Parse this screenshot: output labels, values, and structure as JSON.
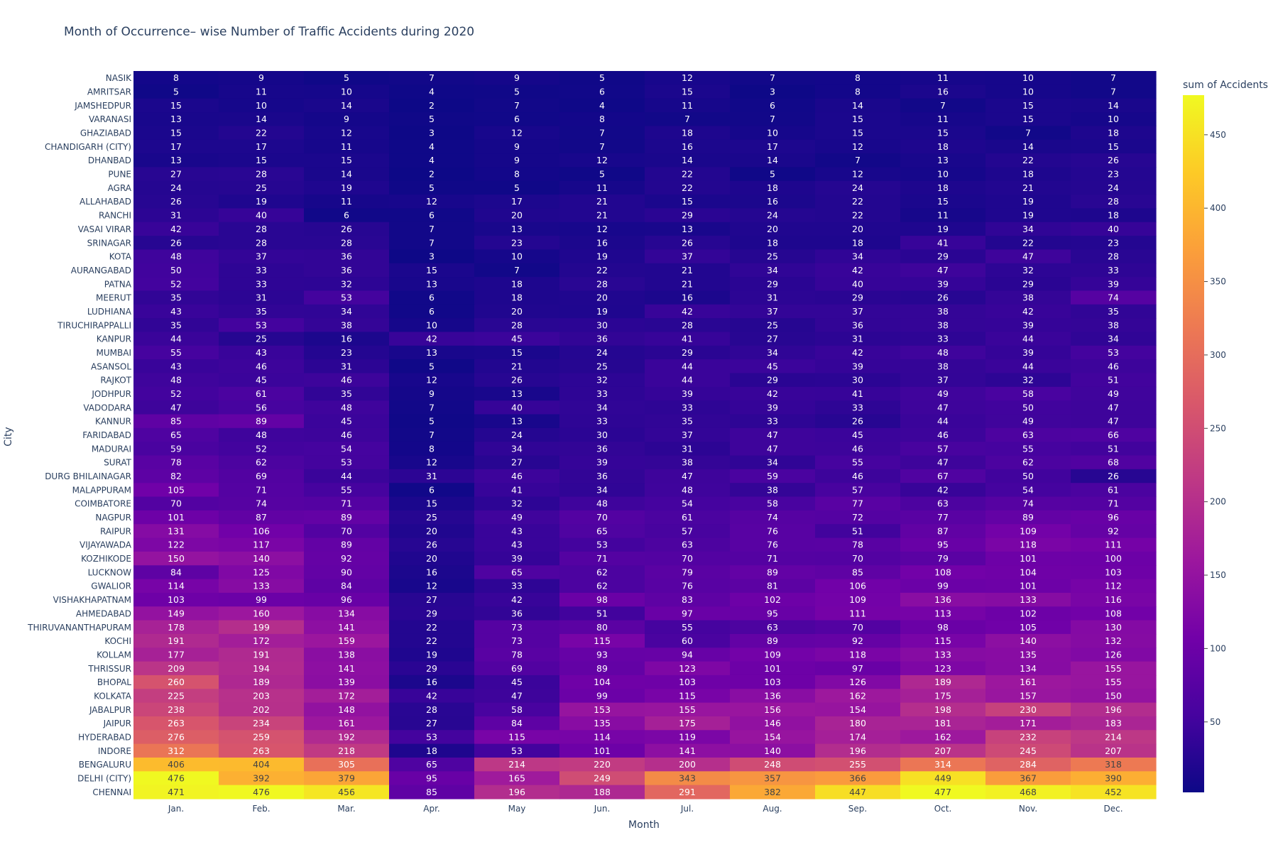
{
  "chart_data": {
    "type": "heatmap",
    "title": "Month of Occurrence– wise Number of Traffic Accidents during 2020",
    "xlabel": "Month",
    "ylabel": "City",
    "colorbar_title": "sum of Accidents",
    "colorbar_ticks": [
      50,
      100,
      150,
      200,
      250,
      300,
      350,
      400,
      450
    ],
    "zrange": [
      2,
      477
    ],
    "colorscale": [
      "#0d0887",
      "#46039f",
      "#7201a8",
      "#9c179e",
      "#bd3786",
      "#d8576b",
      "#ed7953",
      "#fb9f3a",
      "#fdca26",
      "#f0f921"
    ],
    "months": [
      "Jan.",
      "Feb.",
      "Mar.",
      "Apr.",
      "May",
      "Jun.",
      "Jul.",
      "Aug.",
      "Sep.",
      "Oct.",
      "Nov.",
      "Dec."
    ],
    "cities": [
      "NASIK",
      "AMRITSAR",
      "JAMSHEDPUR",
      "VARANASI",
      "GHAZIABAD",
      "CHANDIGARH (CITY)",
      "DHANBAD",
      "PUNE",
      "AGRA",
      "ALLAHABAD",
      "RANCHI",
      "VASAI VIRAR",
      "SRINAGAR",
      "KOTA",
      "AURANGABAD",
      "PATNA",
      "MEERUT",
      "LUDHIANA",
      "TIRUCHIRAPPALLI",
      "KANPUR",
      "MUMBAI",
      "ASANSOL",
      "RAJKOT",
      "JODHPUR",
      "VADODARA",
      "KANNUR",
      "FARIDABAD",
      "MADURAI",
      "SURAT",
      "DURG BHILAINAGAR",
      "MALAPPURAM",
      "COIMBATORE",
      "NAGPUR",
      "RAIPUR",
      "VIJAYAWADA",
      "KOZHIKODE",
      "LUCKNOW",
      "GWALIOR",
      "VISHAKHAPATNAM",
      "AHMEDABAD",
      "THIRUVANANTHAPURAM",
      "KOCHI",
      "KOLLAM",
      "THRISSUR",
      "BHOPAL",
      "KOLKATA",
      "JABALPUR",
      "JAIPUR",
      "HYDERABAD",
      "INDORE",
      "BENGALURU",
      "DELHI (CITY)",
      "CHENNAI"
    ],
    "values": [
      [
        8,
        9,
        5,
        7,
        9,
        5,
        12,
        7,
        8,
        11,
        10,
        7
      ],
      [
        5,
        11,
        10,
        4,
        5,
        6,
        15,
        3,
        8,
        16,
        10,
        7
      ],
      [
        15,
        10,
        14,
        2,
        7,
        4,
        11,
        6,
        14,
        7,
        15,
        14
      ],
      [
        13,
        14,
        9,
        5,
        6,
        8,
        7,
        7,
        15,
        11,
        15,
        10
      ],
      [
        15,
        22,
        12,
        3,
        12,
        7,
        18,
        10,
        15,
        15,
        7,
        18
      ],
      [
        17,
        17,
        11,
        4,
        9,
        7,
        16,
        17,
        12,
        18,
        14,
        15
      ],
      [
        13,
        15,
        15,
        4,
        9,
        12,
        14,
        14,
        7,
        13,
        22,
        26
      ],
      [
        27,
        28,
        14,
        2,
        8,
        5,
        22,
        5,
        12,
        10,
        18,
        23
      ],
      [
        24,
        25,
        19,
        5,
        5,
        11,
        22,
        18,
        24,
        18,
        21,
        24
      ],
      [
        26,
        19,
        11,
        12,
        17,
        21,
        15,
        16,
        22,
        15,
        19,
        28
      ],
      [
        31,
        40,
        6,
        6,
        20,
        21,
        29,
        24,
        22,
        11,
        19,
        18
      ],
      [
        42,
        28,
        26,
        7,
        13,
        12,
        13,
        20,
        20,
        19,
        34,
        40
      ],
      [
        26,
        28,
        28,
        7,
        23,
        16,
        26,
        18,
        18,
        41,
        22,
        23
      ],
      [
        48,
        37,
        36,
        3,
        10,
        19,
        37,
        25,
        34,
        29,
        47,
        28
      ],
      [
        50,
        33,
        36,
        15,
        7,
        22,
        21,
        34,
        42,
        47,
        32,
        33
      ],
      [
        52,
        33,
        32,
        13,
        18,
        28,
        21,
        29,
        40,
        39,
        29,
        39
      ],
      [
        35,
        31,
        53,
        6,
        18,
        20,
        16,
        31,
        29,
        26,
        38,
        74
      ],
      [
        43,
        35,
        34,
        6,
        20,
        19,
        42,
        37,
        37,
        38,
        42,
        35
      ],
      [
        35,
        53,
        38,
        10,
        28,
        30,
        28,
        25,
        36,
        38,
        39,
        38
      ],
      [
        44,
        25,
        16,
        42,
        45,
        36,
        41,
        27,
        31,
        33,
        44,
        34
      ],
      [
        55,
        43,
        23,
        13,
        15,
        24,
        29,
        34,
        42,
        48,
        39,
        53
      ],
      [
        43,
        46,
        31,
        5,
        21,
        25,
        44,
        45,
        39,
        38,
        44,
        46
      ],
      [
        48,
        45,
        46,
        12,
        26,
        32,
        44,
        29,
        30,
        37,
        32,
        51
      ],
      [
        52,
        61,
        35,
        9,
        13,
        33,
        39,
        42,
        41,
        49,
        58,
        49
      ],
      [
        47,
        56,
        48,
        7,
        40,
        34,
        33,
        39,
        33,
        47,
        50,
        47
      ],
      [
        85,
        89,
        45,
        5,
        13,
        33,
        35,
        33,
        26,
        44,
        49,
        47
      ],
      [
        65,
        48,
        46,
        7,
        24,
        30,
        37,
        47,
        45,
        46,
        63,
        66
      ],
      [
        59,
        52,
        54,
        8,
        34,
        36,
        31,
        47,
        46,
        57,
        55,
        51
      ],
      [
        78,
        62,
        53,
        12,
        27,
        39,
        38,
        34,
        55,
        47,
        62,
        68
      ],
      [
        82,
        69,
        44,
        31,
        46,
        36,
        47,
        59,
        46,
        67,
        50,
        26
      ],
      [
        105,
        71,
        55,
        6,
        41,
        34,
        48,
        38,
        57,
        42,
        54,
        61
      ],
      [
        70,
        74,
        71,
        15,
        32,
        48,
        54,
        58,
        77,
        63,
        74,
        71
      ],
      [
        101,
        87,
        89,
        25,
        49,
        70,
        61,
        74,
        72,
        77,
        89,
        96
      ],
      [
        131,
        106,
        70,
        20,
        43,
        65,
        57,
        76,
        51,
        87,
        109,
        92
      ],
      [
        122,
        117,
        89,
        26,
        43,
        53,
        63,
        76,
        78,
        95,
        118,
        111
      ],
      [
        150,
        140,
        92,
        20,
        39,
        71,
        70,
        71,
        70,
        79,
        101,
        100
      ],
      [
        84,
        125,
        90,
        16,
        65,
        62,
        79,
        89,
        85,
        108,
        104,
        103
      ],
      [
        114,
        133,
        84,
        12,
        33,
        62,
        76,
        81,
        106,
        99,
        101,
        112
      ],
      [
        103,
        99,
        96,
        27,
        42,
        98,
        83,
        102,
        109,
        136,
        133,
        116
      ],
      [
        149,
        160,
        134,
        29,
        36,
        51,
        97,
        95,
        111,
        113,
        102,
        108
      ],
      [
        178,
        199,
        141,
        22,
        73,
        80,
        55,
        63,
        70,
        98,
        105,
        130
      ],
      [
        191,
        172,
        159,
        22,
        73,
        115,
        60,
        89,
        92,
        115,
        140,
        132
      ],
      [
        177,
        191,
        138,
        19,
        78,
        93,
        94,
        109,
        118,
        133,
        135,
        126
      ],
      [
        209,
        194,
        141,
        29,
        69,
        89,
        123,
        101,
        97,
        123,
        134,
        155
      ],
      [
        260,
        189,
        139,
        16,
        45,
        104,
        103,
        103,
        126,
        189,
        161,
        155
      ],
      [
        225,
        203,
        172,
        42,
        47,
        99,
        115,
        136,
        162,
        175,
        157,
        150
      ],
      [
        238,
        202,
        148,
        28,
        58,
        153,
        155,
        156,
        154,
        198,
        230,
        196
      ],
      [
        263,
        234,
        161,
        27,
        84,
        135,
        175,
        146,
        180,
        181,
        171,
        183
      ],
      [
        276,
        259,
        192,
        53,
        115,
        114,
        119,
        154,
        174,
        162,
        232,
        214
      ],
      [
        312,
        263,
        218,
        18,
        53,
        101,
        141,
        140,
        196,
        207,
        245,
        207
      ],
      [
        406,
        404,
        305,
        65,
        214,
        220,
        200,
        248,
        255,
        314,
        284,
        318
      ],
      [
        476,
        392,
        379,
        95,
        165,
        249,
        343,
        357,
        366,
        449,
        367,
        390
      ],
      [
        471,
        476,
        456,
        85,
        196,
        188,
        291,
        382,
        447,
        477,
        468,
        452
      ]
    ]
  }
}
